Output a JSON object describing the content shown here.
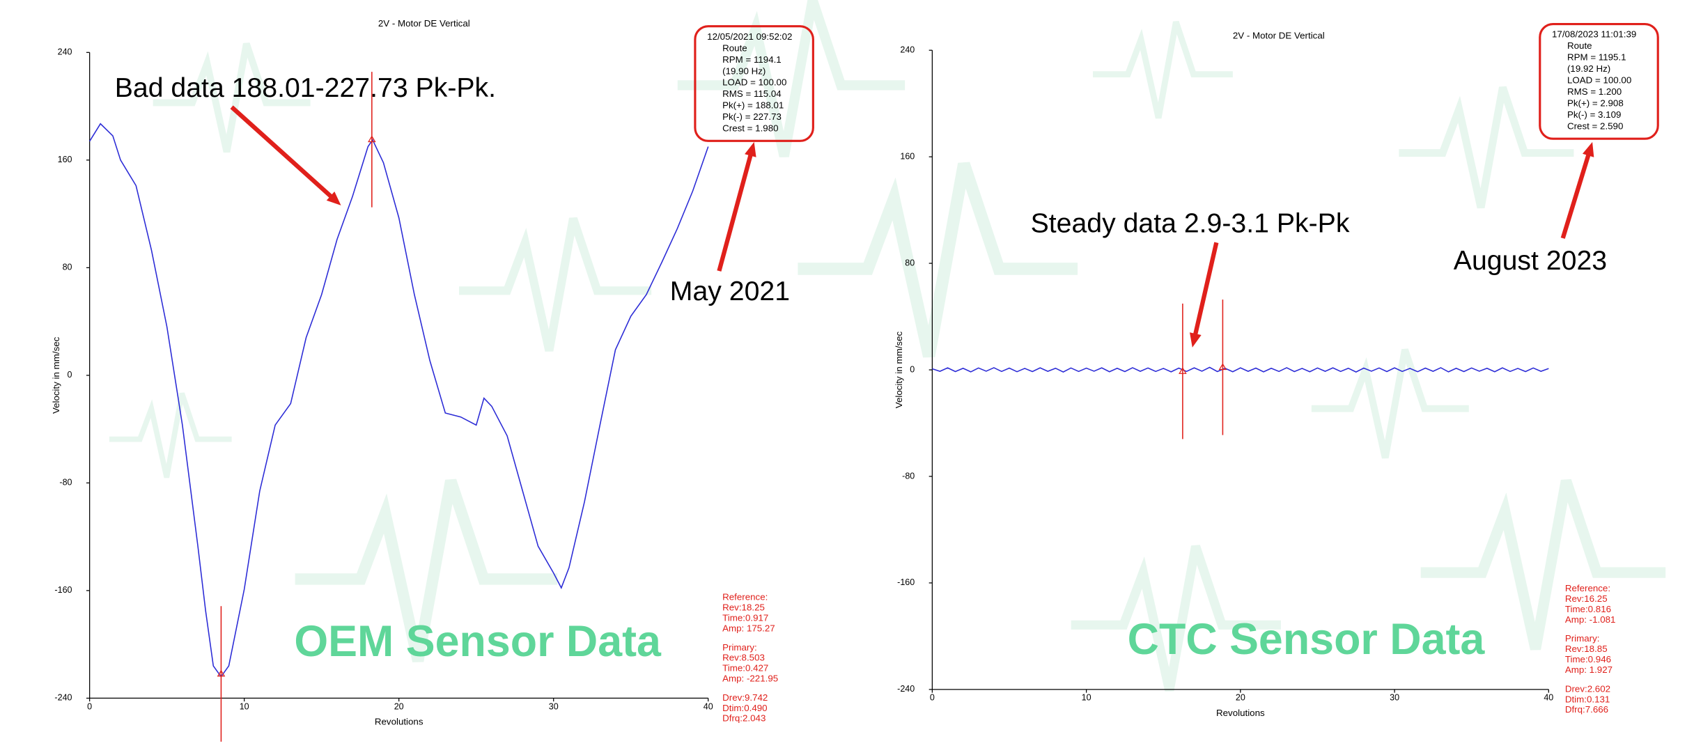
{
  "chart_data": [
    {
      "type": "line",
      "title": "2V - Motor DE Vertical",
      "xlabel": "Revolutions",
      "ylabel": "Velocity in mm/sec",
      "xlim": [
        0,
        40
      ],
      "xticks": [
        0,
        10,
        20,
        30,
        40
      ],
      "ylim": [
        -240,
        240
      ],
      "yticks": [
        -240,
        -160,
        -80,
        0,
        80,
        160,
        240
      ],
      "x": [
        0,
        0.7,
        1.5,
        2,
        3,
        4,
        5,
        6,
        7,
        7.5,
        8,
        8.5,
        9,
        10,
        11,
        12,
        13,
        14,
        15,
        16,
        17,
        18,
        18.3,
        19,
        20,
        21,
        22,
        23,
        24,
        25,
        25.5,
        26,
        27,
        28,
        29,
        30,
        30.5,
        31,
        32,
        33,
        34,
        35,
        36,
        37,
        38,
        39,
        40
      ],
      "series": [
        {
          "color": "#2b2bd6",
          "values": [
            174,
            187,
            178,
            160,
            141,
            93,
            36,
            -37,
            -127,
            -175,
            -216,
            -224,
            -216,
            -159,
            -86,
            -37,
            -21,
            28,
            60,
            101,
            133,
            170,
            175,
            158,
            117,
            60,
            11,
            -28,
            -31,
            -37,
            -17,
            -23,
            -45,
            -86,
            -127,
            -147,
            -158,
            -143,
            -94,
            -37,
            19,
            44,
            60,
            84,
            109,
            137,
            170
          ]
        }
      ],
      "cursors": [
        {
          "x": 18.25,
          "y": 175.27
        },
        {
          "x": 8.503,
          "y": -221.95
        }
      ],
      "cursor_color": "#e0201b",
      "info_box": [
        "12/05/2021 09:52:02",
        "Route",
        "RPM = 1194.1",
        "(19.90 Hz)",
        "LOAD = 100.00",
        "RMS = 115.04",
        "Pk(+) = 188.01",
        "Pk(-) = 227.73",
        "Crest = 1.980"
      ],
      "readout": [
        [
          "Reference:",
          "Rev:18.25",
          "Time:0.917",
          "Amp: 175.27"
        ],
        [
          "Primary:",
          "Rev:8.503",
          "Time:0.427",
          "Amp: -221.95"
        ],
        [
          "Drev:9.742",
          "Dtim:0.490",
          "Dfrq:2.043"
        ]
      ],
      "annotations": [
        "Bad data 188.01-227.73 Pk-Pk.",
        "May 2021"
      ],
      "label": "OEM Sensor Data"
    },
    {
      "type": "line",
      "title": "2V - Motor DE Vertical",
      "xlabel": "Revolutions",
      "ylabel": "Velocity in mm/sec",
      "xlim": [
        0,
        40
      ],
      "xticks": [
        0,
        10,
        20,
        30,
        40
      ],
      "ylim": [
        -240,
        240
      ],
      "yticks": [
        -240,
        -160,
        -80,
        0,
        80,
        160,
        240
      ],
      "x": [
        0,
        0.5,
        1,
        1.5,
        2,
        2.5,
        3,
        3.5,
        4,
        4.5,
        5,
        5.5,
        6,
        6.5,
        7,
        7.5,
        8,
        8.5,
        9,
        9.5,
        10,
        10.5,
        11,
        11.5,
        12,
        12.5,
        13,
        13.5,
        14,
        14.5,
        15,
        15.5,
        16,
        16.5,
        17,
        17.5,
        18,
        18.5,
        19,
        19.5,
        20,
        20.5,
        21,
        21.5,
        22,
        22.5,
        23,
        23.5,
        24,
        24.5,
        25,
        25.5,
        26,
        26.5,
        27,
        27.5,
        28,
        28.5,
        29,
        29.5,
        30,
        30.5,
        31,
        31.5,
        32,
        32.5,
        33,
        33.5,
        34,
        34.5,
        35,
        35.5,
        36,
        36.5,
        37,
        37.5,
        38,
        38.5,
        39,
        39.5,
        40
      ],
      "series": [
        {
          "color": "#2b2bd6",
          "values": [
            0.8,
            -1.1,
            1.5,
            -1.3,
            1.2,
            -1.5,
            1.4,
            -1.0,
            1.6,
            -1.2,
            1.3,
            -1.4,
            1.1,
            -1.3,
            1.5,
            -1.1,
            1.2,
            -1.6,
            1.4,
            -1.2,
            1.3,
            -1.0,
            1.5,
            -1.4,
            1.2,
            -1.3,
            1.6,
            -1.1,
            1.4,
            -1.2,
            1.1,
            -1.5,
            1.3,
            -1.2,
            1.5,
            -1.0,
            1.9,
            -1.3,
            1.2,
            -1.4,
            1.5,
            -1.1,
            1.3,
            -1.5,
            1.2,
            -1.2,
            1.6,
            -1.3,
            1.1,
            -1.4,
            1.4,
            -1.1,
            1.5,
            -1.2,
            1.2,
            -1.6,
            1.3,
            -1.0,
            1.4,
            -1.3,
            1.5,
            -1.2,
            1.1,
            -1.4,
            1.3,
            -1.1,
            1.6,
            -1.5,
            1.2,
            -1.3,
            1.4,
            -1.0,
            1.2,
            -1.4,
            1.5,
            -1.2,
            1.1,
            -1.3,
            1.4,
            -1.1,
            1.0
          ]
        }
      ],
      "cursors": [
        {
          "x": 16.25,
          "y": -1.081
        },
        {
          "x": 18.85,
          "y": 1.927
        }
      ],
      "cursor_color": "#e0201b",
      "info_box": [
        "17/08/2023 11:01:39",
        "Route",
        "RPM = 1195.1",
        "(19.92 Hz)",
        "LOAD = 100.00",
        "RMS = 1.200",
        "Pk(+) = 2.908",
        "Pk(-) = 3.109",
        "Crest = 2.590"
      ],
      "readout": [
        [
          "Reference:",
          "Rev:16.25",
          "Time:0.816",
          "Amp: -1.081"
        ],
        [
          "Primary:",
          "Rev:18.85",
          "Time:0.946",
          "Amp: 1.927"
        ],
        [
          "Drev:2.602",
          "Dtim:0.131",
          "Dfrq:7.666"
        ]
      ],
      "annotations": [
        "Steady data 2.9-3.1 Pk-Pk",
        "August 2023"
      ],
      "label": "CTC Sensor Data"
    }
  ]
}
